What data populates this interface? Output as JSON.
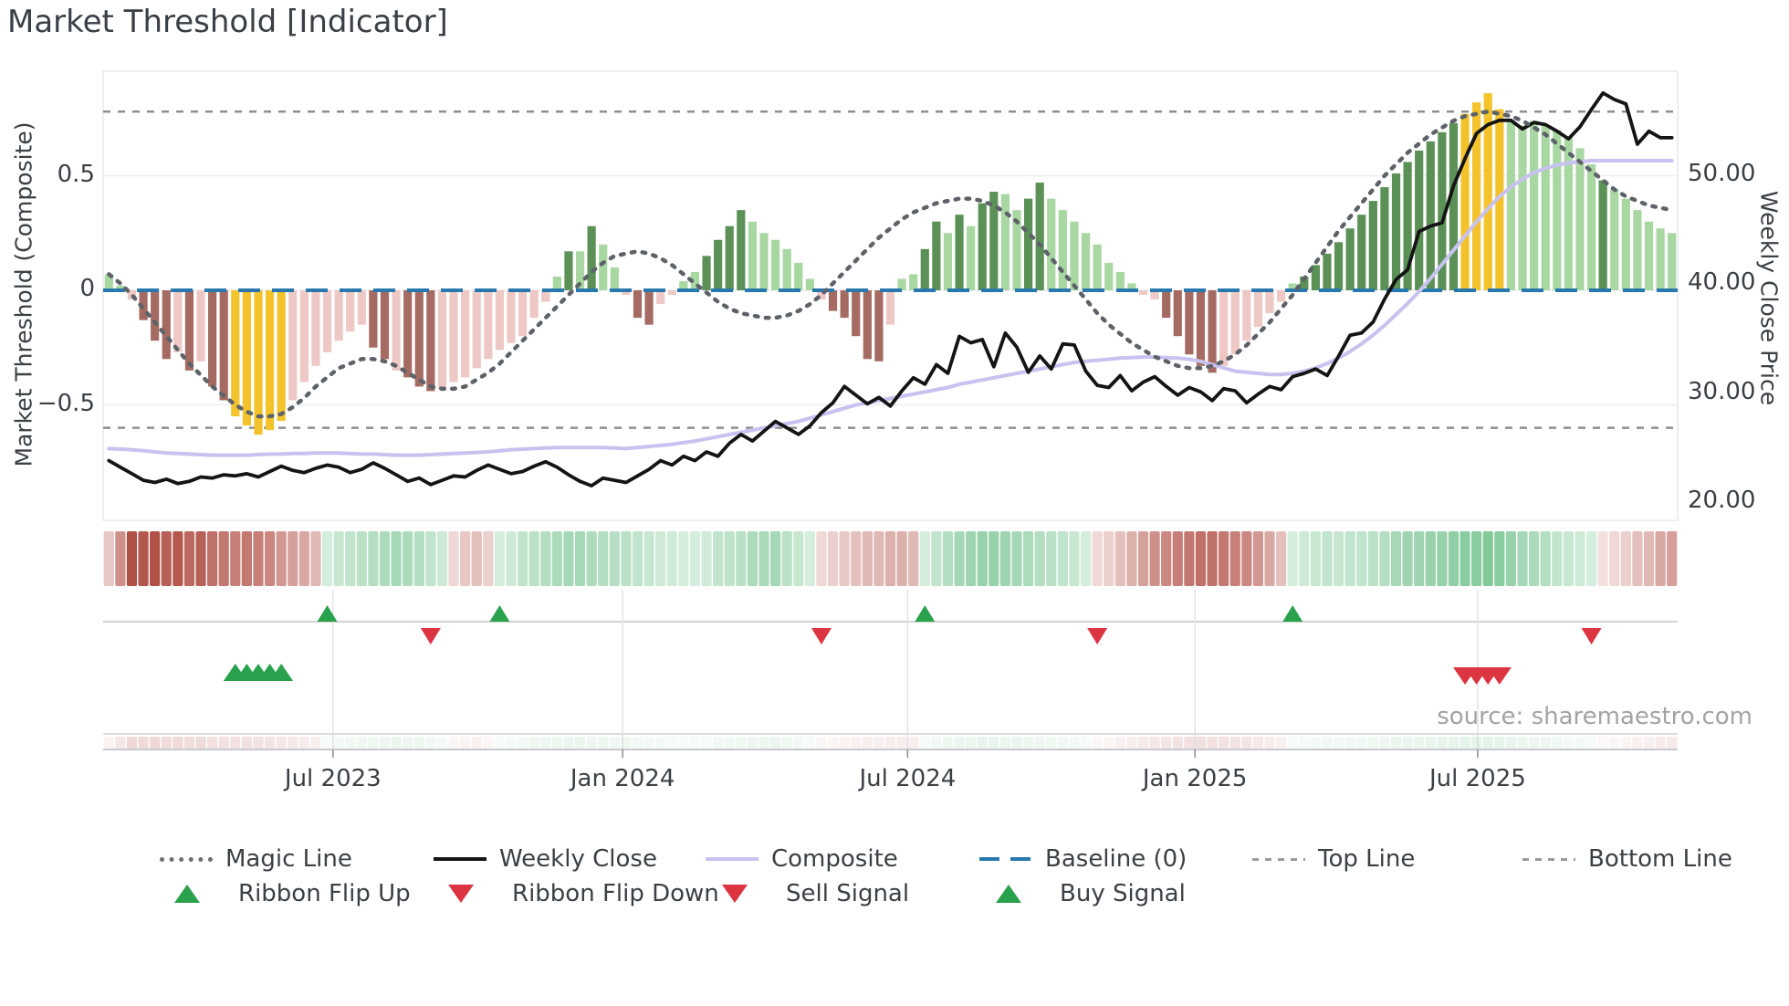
{
  "title": "Market Threshold [Indicator]",
  "axes": {
    "left_label": "Market Threshold (Composite)",
    "right_label": "Weekly Close Price",
    "left_ticks": [
      {
        "label": "0.5",
        "v": 0.5
      },
      {
        "label": "0",
        "v": 0
      },
      {
        "label": "−0.5",
        "v": -0.5
      }
    ],
    "right_ticks": [
      {
        "label": "50.00",
        "p": 50
      },
      {
        "label": "40.00",
        "p": 40
      },
      {
        "label": "30.00",
        "p": 30
      },
      {
        "label": "20.00",
        "p": 20
      }
    ],
    "x_ticks": [
      {
        "label": "Jul 2023",
        "week": 20
      },
      {
        "label": "Jan 2024",
        "week": 45.2
      },
      {
        "label": "Jul 2024",
        "week": 70
      },
      {
        "label": "Jan 2025",
        "week": 95
      },
      {
        "label": "Jul 2025",
        "week": 119.6
      }
    ]
  },
  "source": "source: sharemaestro.com",
  "chart_data": {
    "type": "bar",
    "description": "Weekly momentum histogram with overlaid lines; left axis = Market Threshold (Composite) [-0.8..0.9], right axis = Weekly Close Price [20..57]; 137 weekly points from ~Feb 2023 to ~Oct 2025",
    "ylim_left": [
      -0.85,
      0.95
    ],
    "baseline": 0,
    "top_line": 0.78,
    "bottom_line": -0.6,
    "bar_values": [
      0.07,
      0.02,
      -0.04,
      -0.13,
      -0.22,
      -0.3,
      -0.27,
      -0.35,
      -0.31,
      -0.42,
      -0.48,
      -0.55,
      -0.59,
      -0.63,
      -0.61,
      -0.57,
      -0.48,
      -0.4,
      -0.33,
      -0.27,
      -0.22,
      -0.18,
      -0.15,
      -0.25,
      -0.3,
      -0.35,
      -0.38,
      -0.42,
      -0.44,
      -0.43,
      -0.4,
      -0.38,
      -0.34,
      -0.3,
      -0.26,
      -0.23,
      -0.2,
      -0.12,
      -0.05,
      0.06,
      0.17,
      0.17,
      0.28,
      0.2,
      0.1,
      -0.02,
      -0.12,
      -0.15,
      -0.06,
      -0.02,
      0.04,
      0.08,
      0.15,
      0.22,
      0.28,
      0.35,
      0.3,
      0.25,
      0.22,
      0.18,
      0.12,
      0.05,
      -0.04,
      -0.09,
      -0.12,
      -0.2,
      -0.3,
      -0.31,
      -0.15,
      0.05,
      0.07,
      0.18,
      0.3,
      0.25,
      0.33,
      0.28,
      0.38,
      0.43,
      0.42,
      0.35,
      0.4,
      0.47,
      0.4,
      0.35,
      0.3,
      0.25,
      0.2,
      0.12,
      0.08,
      0.03,
      -0.02,
      -0.04,
      -0.12,
      -0.2,
      -0.28,
      -0.33,
      -0.36,
      -0.33,
      -0.28,
      -0.22,
      -0.16,
      -0.1,
      -0.05,
      0.03,
      0.06,
      0.11,
      0.16,
      0.21,
      0.27,
      0.33,
      0.39,
      0.45,
      0.51,
      0.56,
      0.61,
      0.65,
      0.69,
      0.73,
      0.77,
      0.82,
      0.86,
      0.79,
      0.74,
      0.72,
      0.74,
      0.72,
      0.7,
      0.67,
      0.62,
      0.55,
      0.48,
      0.44,
      0.4,
      0.35,
      0.3,
      0.27,
      0.25
    ],
    "bar_colors": "ggrRRRrRrRRyyyyyrrrrrrrRRrRRRrrrrrrrrrrgGgGggrRRrrggGGGGggggggrRRRRRrggGGgGgGGggGGggggggggrrRRRRRrrrrrrgGGGGGGGGGGGGGGyyyyggggggggGgggggg",
    "weekly_close": [
      23.8,
      23.2,
      22.6,
      22.0,
      21.8,
      22.1,
      21.7,
      21.9,
      22.3,
      22.2,
      22.5,
      22.4,
      22.6,
      22.3,
      22.8,
      23.3,
      22.9,
      22.7,
      23.1,
      23.4,
      23.2,
      22.7,
      23.0,
      23.6,
      23.1,
      22.5,
      21.9,
      22.2,
      21.6,
      22.0,
      22.4,
      22.3,
      22.9,
      23.4,
      23.0,
      22.6,
      22.8,
      23.3,
      23.7,
      23.2,
      22.5,
      21.9,
      21.5,
      22.2,
      22.0,
      21.8,
      22.4,
      23.0,
      23.8,
      23.4,
      24.2,
      23.8,
      24.6,
      24.2,
      25.4,
      26.2,
      25.6,
      26.5,
      27.4,
      26.8,
      26.2,
      27.0,
      28.2,
      29.1,
      30.6,
      29.8,
      29.0,
      29.6,
      28.8,
      30.2,
      31.4,
      30.8,
      32.6,
      31.8,
      35.2,
      34.6,
      34.9,
      32.4,
      35.5,
      34.2,
      31.9,
      33.4,
      32.2,
      34.5,
      34.4,
      32.0,
      30.7,
      30.5,
      31.6,
      30.2,
      31.0,
      31.5,
      30.6,
      29.8,
      30.5,
      30.1,
      29.3,
      30.4,
      30.2,
      29.1,
      29.9,
      30.6,
      30.3,
      31.5,
      31.8,
      32.2,
      31.6,
      33.4,
      35.3,
      35.5,
      36.5,
      38.6,
      40.4,
      41.3,
      44.8,
      45.3,
      45.6,
      49.0,
      51.5,
      53.8,
      54.6,
      55.0,
      55.0,
      54.2,
      54.8,
      54.6,
      54.0,
      53.3,
      54.4,
      56.0,
      57.5,
      56.9,
      56.5,
      52.8,
      54.0,
      53.4,
      53.4
    ],
    "composite": [
      24.9,
      24.85,
      24.8,
      24.7,
      24.6,
      24.5,
      24.45,
      24.4,
      24.35,
      24.3,
      24.3,
      24.3,
      24.3,
      24.35,
      24.4,
      24.4,
      24.45,
      24.45,
      24.5,
      24.5,
      24.5,
      24.45,
      24.4,
      24.4,
      24.35,
      24.3,
      24.3,
      24.3,
      24.35,
      24.4,
      24.45,
      24.5,
      24.55,
      24.6,
      24.7,
      24.8,
      24.85,
      24.9,
      24.95,
      25.0,
      25.0,
      25.0,
      25.0,
      25.0,
      24.95,
      24.9,
      25.0,
      25.1,
      25.2,
      25.3,
      25.45,
      25.6,
      25.8,
      26.0,
      26.2,
      26.4,
      26.6,
      26.8,
      27.0,
      27.2,
      27.4,
      27.7,
      28.0,
      28.3,
      28.6,
      28.9,
      29.1,
      29.3,
      29.5,
      29.7,
      29.9,
      30.1,
      30.3,
      30.5,
      30.8,
      31.0,
      31.2,
      31.4,
      31.6,
      31.8,
      32.0,
      32.2,
      32.4,
      32.6,
      32.8,
      32.9,
      33.0,
      33.1,
      33.2,
      33.25,
      33.3,
      33.3,
      33.25,
      33.2,
      33.1,
      32.9,
      32.6,
      32.3,
      32.0,
      31.9,
      31.8,
      31.7,
      31.7,
      31.8,
      32.0,
      32.3,
      32.7,
      33.2,
      33.8,
      34.5,
      35.3,
      36.2,
      37.2,
      38.2,
      39.3,
      40.5,
      41.8,
      43.1,
      44.4,
      45.7,
      46.9,
      48.0,
      48.9,
      49.6,
      50.2,
      50.6,
      50.9,
      51.1,
      51.2,
      51.3,
      51.3,
      51.3,
      51.3,
      51.3,
      51.3,
      51.3,
      51.3
    ],
    "magic_line": [
      0.07,
      0.03,
      -0.02,
      -0.08,
      -0.14,
      -0.2,
      -0.26,
      -0.32,
      -0.37,
      -0.42,
      -0.46,
      -0.5,
      -0.53,
      -0.55,
      -0.55,
      -0.54,
      -0.51,
      -0.47,
      -0.42,
      -0.38,
      -0.34,
      -0.32,
      -0.3,
      -0.3,
      -0.31,
      -0.33,
      -0.36,
      -0.39,
      -0.42,
      -0.43,
      -0.43,
      -0.42,
      -0.39,
      -0.36,
      -0.32,
      -0.27,
      -0.22,
      -0.17,
      -0.12,
      -0.07,
      -0.02,
      0.03,
      0.08,
      0.12,
      0.15,
      0.16,
      0.17,
      0.16,
      0.14,
      0.11,
      0.07,
      0.03,
      -0.01,
      -0.05,
      -0.08,
      -0.1,
      -0.11,
      -0.12,
      -0.12,
      -0.11,
      -0.09,
      -0.06,
      -0.02,
      0.03,
      0.08,
      0.13,
      0.18,
      0.23,
      0.27,
      0.31,
      0.34,
      0.36,
      0.38,
      0.39,
      0.4,
      0.4,
      0.39,
      0.37,
      0.34,
      0.3,
      0.25,
      0.2,
      0.14,
      0.08,
      0.02,
      -0.04,
      -0.1,
      -0.15,
      -0.19,
      -0.23,
      -0.26,
      -0.29,
      -0.31,
      -0.33,
      -0.34,
      -0.34,
      -0.33,
      -0.31,
      -0.28,
      -0.24,
      -0.19,
      -0.14,
      -0.08,
      -0.02,
      0.05,
      0.12,
      0.19,
      0.26,
      0.32,
      0.38,
      0.44,
      0.5,
      0.55,
      0.6,
      0.64,
      0.68,
      0.71,
      0.74,
      0.76,
      0.77,
      0.78,
      0.77,
      0.76,
      0.74,
      0.71,
      0.68,
      0.64,
      0.6,
      0.56,
      0.52,
      0.48,
      0.44,
      0.41,
      0.39,
      0.37,
      0.36,
      0.35
    ],
    "ribbon": [
      -0.25,
      -0.6,
      -1.0,
      -0.95,
      -1.0,
      -0.9,
      -0.95,
      -0.85,
      -0.9,
      -0.8,
      -0.75,
      -0.7,
      -0.75,
      -0.7,
      -0.65,
      -0.55,
      -0.5,
      -0.45,
      -0.35,
      0.15,
      0.25,
      0.3,
      0.35,
      0.4,
      0.45,
      0.5,
      0.45,
      0.4,
      0.3,
      0.2,
      -0.15,
      -0.25,
      -0.3,
      -0.2,
      0.15,
      0.2,
      0.3,
      0.35,
      0.4,
      0.45,
      0.5,
      0.5,
      0.45,
      0.4,
      0.38,
      0.35,
      0.3,
      0.25,
      0.2,
      0.18,
      0.15,
      0.15,
      0.18,
      0.3,
      0.32,
      0.35,
      0.45,
      0.48,
      0.5,
      0.35,
      0.25,
      0.15,
      -0.15,
      -0.2,
      -0.25,
      -0.3,
      -0.35,
      -0.35,
      -0.4,
      -0.4,
      -0.35,
      0.15,
      0.3,
      0.4,
      0.5,
      0.55,
      0.6,
      0.6,
      0.55,
      0.5,
      0.45,
      0.4,
      0.35,
      0.3,
      0.25,
      0.15,
      -0.15,
      -0.2,
      -0.3,
      -0.4,
      -0.5,
      -0.6,
      -0.65,
      -0.7,
      -0.75,
      -0.8,
      -0.8,
      -0.75,
      -0.7,
      -0.65,
      -0.55,
      -0.45,
      -0.3,
      0.15,
      0.2,
      0.25,
      0.3,
      0.25,
      0.3,
      0.3,
      0.35,
      0.4,
      0.5,
      0.55,
      0.55,
      0.6,
      0.6,
      0.65,
      0.7,
      0.7,
      0.75,
      0.7,
      0.6,
      0.5,
      0.45,
      0.4,
      0.3,
      0.25,
      0.2,
      0.15,
      -0.1,
      -0.15,
      -0.2,
      -0.3,
      -0.35,
      -0.45,
      -0.5
    ],
    "signals": {
      "ribbon_flip_up_weeks": [
        19,
        34,
        71,
        103
      ],
      "ribbon_flip_down_weeks": [
        28,
        62,
        86,
        129
      ],
      "buy_signal_weeks": [
        11,
        12,
        13,
        14,
        15
      ],
      "sell_signal_weeks": [
        118,
        119,
        120,
        121
      ]
    },
    "colors": {
      "bar_dark_red": "#a56b63",
      "bar_light_red": "#eec8c5",
      "bar_dark_green": "#5b9156",
      "bar_light_green": "#a8d7a2",
      "bar_extreme_yellow": "#f4c32b",
      "weekly_close": "#141414",
      "composite": "#c7c2ef",
      "magic_line": "#5d6268",
      "baseline": "#2878ad",
      "threshold_line": "#8f8f8f",
      "flip_up_green": "#2aa14c",
      "flip_down_red": "#dc3440"
    }
  },
  "legend": {
    "row1": [
      {
        "label": "Magic Line"
      },
      {
        "label": "Weekly Close"
      },
      {
        "label": "Composite"
      },
      {
        "label": "Baseline (0)"
      },
      {
        "label": "Top Line"
      },
      {
        "label": "Bottom Line"
      }
    ],
    "row2": [
      {
        "label": "Ribbon Flip Up"
      },
      {
        "label": "Ribbon Flip Down"
      },
      {
        "label": "Sell Signal"
      },
      {
        "label": "Buy Signal"
      }
    ]
  }
}
